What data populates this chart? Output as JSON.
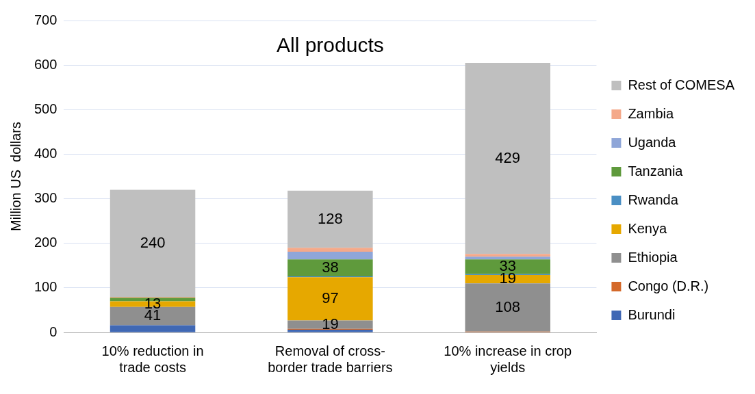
{
  "chart_data": {
    "type": "bar",
    "title": "All products",
    "ylabel": "Million US  dollars",
    "categories": [
      "10% reduction in\ntrade costs",
      "Removal of cross-\nborder trade barriers",
      "10% increase in crop\nyields"
    ],
    "stacked": true,
    "ylim": [
      0,
      700
    ],
    "yticks": [
      0,
      100,
      200,
      300,
      400,
      500,
      600,
      700
    ],
    "grid": "y",
    "legend": "right",
    "series": [
      {
        "name": "Burundi",
        "color": "#4068b4",
        "values": [
          16,
          6,
          null
        ]
      },
      {
        "name": "Congo (D.R.)",
        "color": "#d4692a",
        "values": [
          0,
          2,
          2
        ]
      },
      {
        "name": "Ethiopia",
        "color": "#8f8f8f",
        "values": [
          41,
          19,
          108
        ],
        "value_labels": [
          "41",
          "19",
          "108"
        ]
      },
      {
        "name": "Kenya",
        "color": "#e6a800",
        "values": [
          13,
          97,
          19
        ],
        "value_labels": [
          "13",
          "97",
          "19"
        ]
      },
      {
        "name": "Rwanda",
        "color": "#4a8fc4",
        "values": [
          0,
          2,
          2
        ]
      },
      {
        "name": "Tanzania",
        "color": "#5f9a3c",
        "values": [
          8,
          38,
          33
        ],
        "value_labels": [
          null,
          "38",
          "33"
        ]
      },
      {
        "name": "Uganda",
        "color": "#8fa6d8",
        "values": [
          0,
          17,
          6
        ]
      },
      {
        "name": "Zambia",
        "color": "#f4a98a",
        "values": [
          2,
          9,
          6
        ]
      },
      {
        "name": "Rest of COMESA",
        "color": "#bfbfbf",
        "values": [
          240,
          128,
          429
        ],
        "value_labels": [
          "240",
          "128",
          "429"
        ]
      }
    ]
  }
}
